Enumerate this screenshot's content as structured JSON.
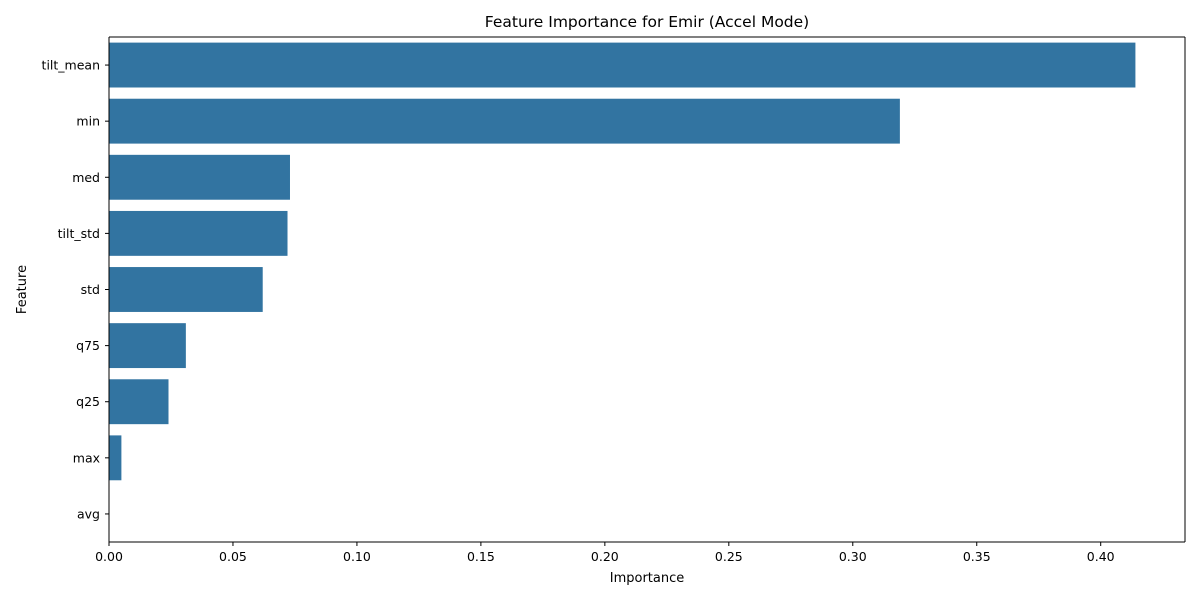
{
  "chart_data": {
    "type": "bar",
    "orientation": "horizontal",
    "title": "Feature Importance for Emir (Accel Mode)",
    "xlabel": "Importance",
    "ylabel": "Feature",
    "categories": [
      "tilt_mean",
      "min",
      "med",
      "tilt_std",
      "std",
      "q75",
      "q25",
      "max",
      "avg"
    ],
    "values": [
      0.414,
      0.319,
      0.073,
      0.072,
      0.062,
      0.031,
      0.024,
      0.005,
      0.0
    ],
    "xlim": [
      0,
      0.434
    ],
    "xticks": [
      "0.00",
      "0.05",
      "0.10",
      "0.15",
      "0.20",
      "0.25",
      "0.30",
      "0.35",
      "0.40"
    ],
    "grid": false,
    "bar_color": "#3274a1"
  }
}
